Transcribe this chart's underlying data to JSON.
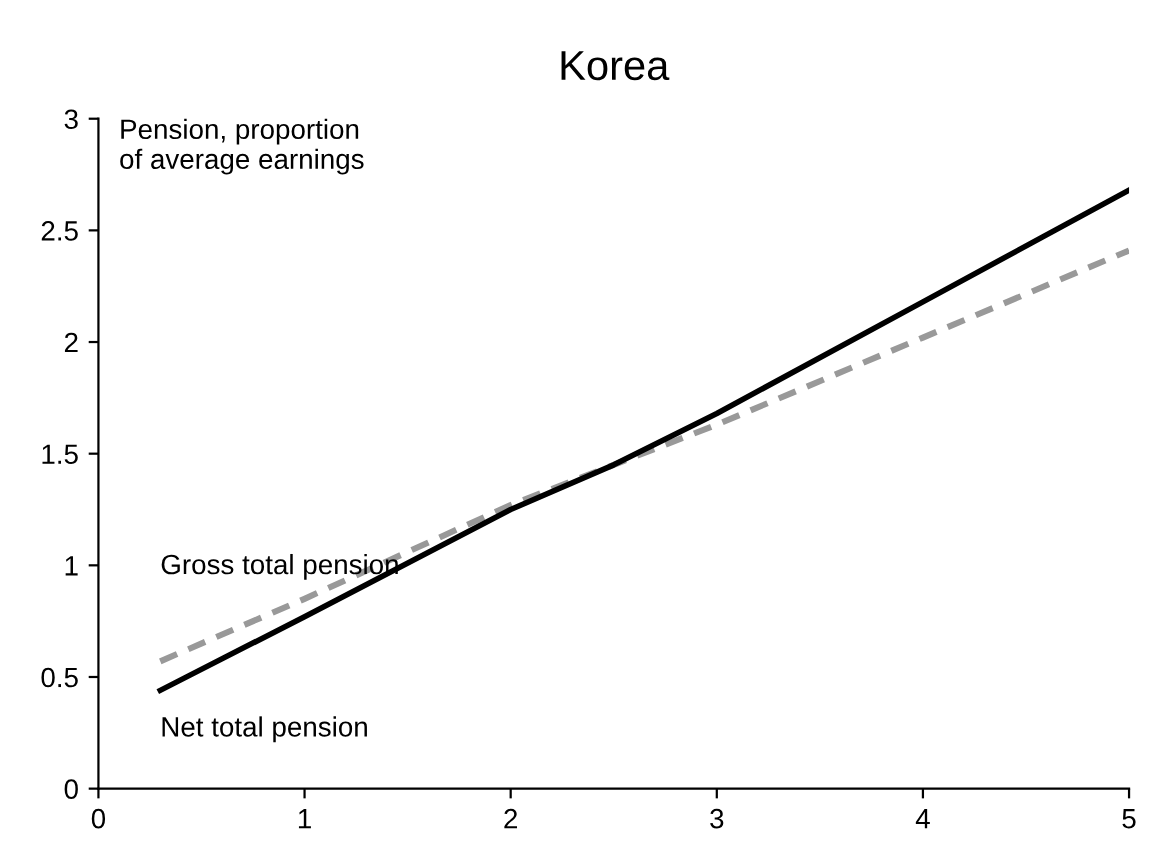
{
  "chart_data": {
    "type": "line",
    "title": "Korea",
    "ylabel": "Pension, proportion\nof average earnings",
    "x": [
      0.3,
      1,
      2,
      2.5,
      3,
      4,
      5
    ],
    "series": [
      {
        "name": "Gross total pension",
        "color": "#999999",
        "line_style": "dashed",
        "values": [
          0.57,
          0.85,
          1.27,
          1.45,
          1.63,
          2.02,
          2.41
        ]
      },
      {
        "name": "Net total pension",
        "color": "#000000",
        "line_style": "solid",
        "values": [
          0.44,
          0.77,
          1.25,
          1.45,
          1.68,
          2.18,
          2.68
        ]
      }
    ],
    "xlim": [
      0,
      5
    ],
    "ylim": [
      0,
      3
    ],
    "xticks": [
      0,
      1,
      2,
      3,
      4,
      5
    ],
    "yticks": [
      0,
      0.5,
      1,
      1.5,
      2,
      2.5,
      3
    ],
    "grid": false,
    "legend": false,
    "marker": "none"
  }
}
